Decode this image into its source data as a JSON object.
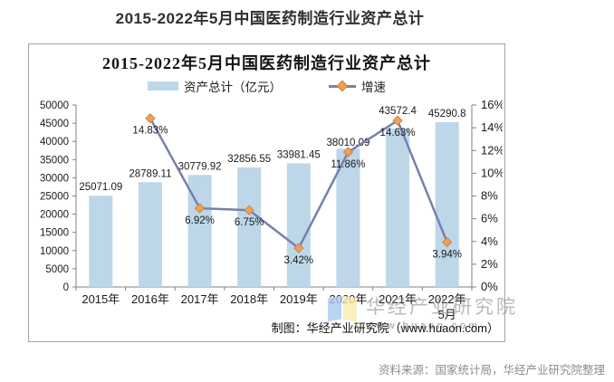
{
  "page_title": "2015-2022年5月中国医药制造行业资产总计",
  "chart": {
    "title": "2015-2022年5月中国医药制造行业资产总计",
    "legend": [
      {
        "label": "资产总计（亿元）",
        "type": "bar"
      },
      {
        "label": "增速",
        "type": "line"
      }
    ],
    "footer": "制图：华经产业研究院（www.huaon.com）",
    "watermark": {
      "name": "华经产业研究院",
      "url": "www.huaon.com"
    }
  },
  "chart_data": {
    "type": "combo",
    "categories": [
      "2015年",
      "2016年",
      "2017年",
      "2018年",
      "2019年",
      "2020年",
      "2021年",
      "2022年5月"
    ],
    "series": [
      {
        "name": "资产总计（亿元）",
        "type": "bar",
        "axis": "left",
        "values": [
          25071.09,
          28789.11,
          30779.92,
          32856.55,
          33981.45,
          38010.09,
          43572.4,
          45290.8
        ]
      },
      {
        "name": "增速",
        "type": "line",
        "axis": "right",
        "unit": "%",
        "values": [
          null,
          14.83,
          6.92,
          6.75,
          3.42,
          11.86,
          14.63,
          3.94
        ]
      }
    ],
    "left_axis": {
      "min": 0,
      "max": 50000,
      "step": 5000,
      "ticks": [
        "0",
        "5000",
        "10000",
        "15000",
        "20000",
        "25000",
        "30000",
        "35000",
        "40000",
        "45000",
        "50000"
      ]
    },
    "right_axis": {
      "min": 0,
      "max": 16,
      "step": 2,
      "suffix": "%",
      "ticks": [
        "0%",
        "2%",
        "4%",
        "6%",
        "8%",
        "10%",
        "12%",
        "14%",
        "16%"
      ]
    },
    "grid": false,
    "legend_position": "top",
    "colors": {
      "bar": "#bdd7e8",
      "line": "#7680ac",
      "marker_fill": "#efa055",
      "marker_stroke": "#cc8342",
      "axis": "#808080",
      "label": "#1a1a1a"
    }
  },
  "source_note": "资料来源：国家统计局，华经产业研究院整理"
}
